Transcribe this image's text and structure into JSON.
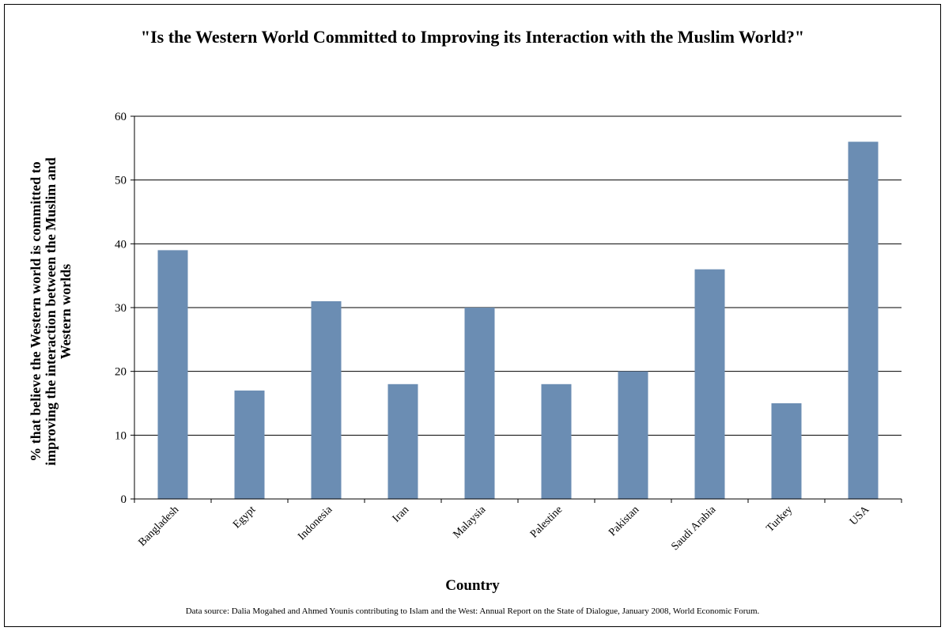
{
  "chart_data": {
    "type": "bar",
    "title": "\"Is the Western World Committed to Improving its Interaction with the Muslim World?\"",
    "xlabel": "Country",
    "ylabel": "% that believe the Western world is committed to improving the interaction between the Muslim and Western worlds",
    "categories": [
      "Bangladesh",
      "Egypt",
      "Indonesia",
      "Iran",
      "Malaysia",
      "Palestine",
      "Pakistan",
      "Saudi Arabia",
      "Turkey",
      "USA"
    ],
    "values": [
      39,
      17,
      31,
      18,
      30,
      18,
      20,
      36,
      15,
      56
    ],
    "ylim": [
      0,
      60
    ],
    "yticks": [
      0,
      10,
      20,
      30,
      40,
      50,
      60
    ],
    "grid": true,
    "legend": "none",
    "bar_color": "#6b8db3",
    "source": "Data source: Dalia Mogahed and Ahmed Younis contributing to Islam and the West: Annual Report on the State of Dialogue, January 2008, World Economic Forum."
  }
}
